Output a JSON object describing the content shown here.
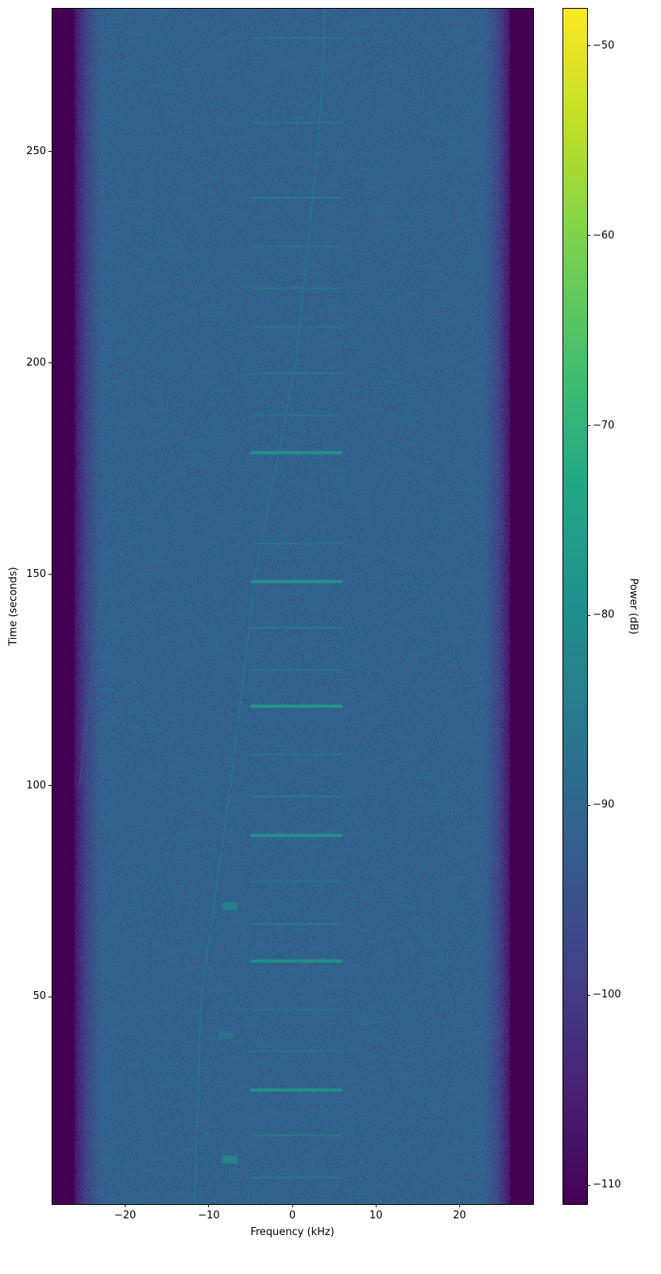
{
  "chart_data": {
    "type": "heatmap",
    "subtype": "spectrogram",
    "title": "",
    "xlabel": "Frequency (kHz)",
    "ylabel": "Time (seconds)",
    "colorbar_label": "Power (dB)",
    "colormap": "viridis",
    "xlim": [
      -28.8,
      28.8
    ],
    "ylim": [
      1,
      284
    ],
    "clim": [
      -111,
      -48
    ],
    "xticks": [
      -20,
      -10,
      0,
      10,
      20
    ],
    "xtick_labels": [
      "−20",
      "−10",
      "0",
      "10",
      "20"
    ],
    "yticks": [
      50,
      100,
      150,
      200,
      250
    ],
    "ytick_labels": [
      "50",
      "100",
      "150",
      "200",
      "250"
    ],
    "cticks": [
      -50,
      -60,
      -70,
      -80,
      -90,
      -100,
      -110
    ],
    "ctick_labels": [
      "−50",
      "−60",
      "−70",
      "−80",
      "−90",
      "−100",
      "−110"
    ],
    "noise_floor_db": -91,
    "passband_edge_khz": 26,
    "out_of_band_db": -111,
    "bursts": {
      "freq_range_khz": [
        -5,
        6
      ],
      "times_s": [
        7.3,
        17.3,
        28.0,
        37.2,
        47.0,
        58.5,
        67.3,
        77.4,
        88.2,
        97.4,
        107.3,
        118.8,
        127.4,
        137.4,
        148.3,
        157.3,
        178.8,
        187.6,
        197.6,
        208.5,
        217.7,
        227.6,
        239.1,
        256.8,
        276.9
      ],
      "power_db": [
        -84,
        -85,
        -78,
        -86,
        -87,
        -78,
        -85,
        -86,
        -77,
        -85,
        -86,
        -75,
        -86,
        -84,
        -77,
        -86,
        -77,
        -86,
        -84,
        -86,
        -85,
        -86,
        -84,
        -86,
        -86
      ]
    },
    "drifting_tone": {
      "points": [
        [
          -11.7,
          1
        ],
        [
          -10.9,
          50
        ],
        [
          -7.4,
          100
        ],
        [
          -4.4,
          150
        ],
        [
          0.4,
          200
        ],
        [
          3.0,
          250
        ],
        [
          3.5,
          265
        ],
        [
          3.9,
          284
        ]
      ],
      "power_db": -82
    },
    "faint_tone": {
      "points": [
        [
          -25.5,
          100
        ],
        [
          -21,
          180
        ],
        [
          -17,
          230
        ],
        [
          -15.5,
          284
        ]
      ],
      "power_db": -88
    },
    "blobs": [
      {
        "freq_khz": -7.5,
        "time_s": 11.5,
        "power_db": -80
      },
      {
        "freq_khz": -7.5,
        "time_s": 71.5,
        "power_db": -81
      },
      {
        "freq_khz": -8,
        "time_s": 41,
        "power_db": -86
      }
    ]
  }
}
